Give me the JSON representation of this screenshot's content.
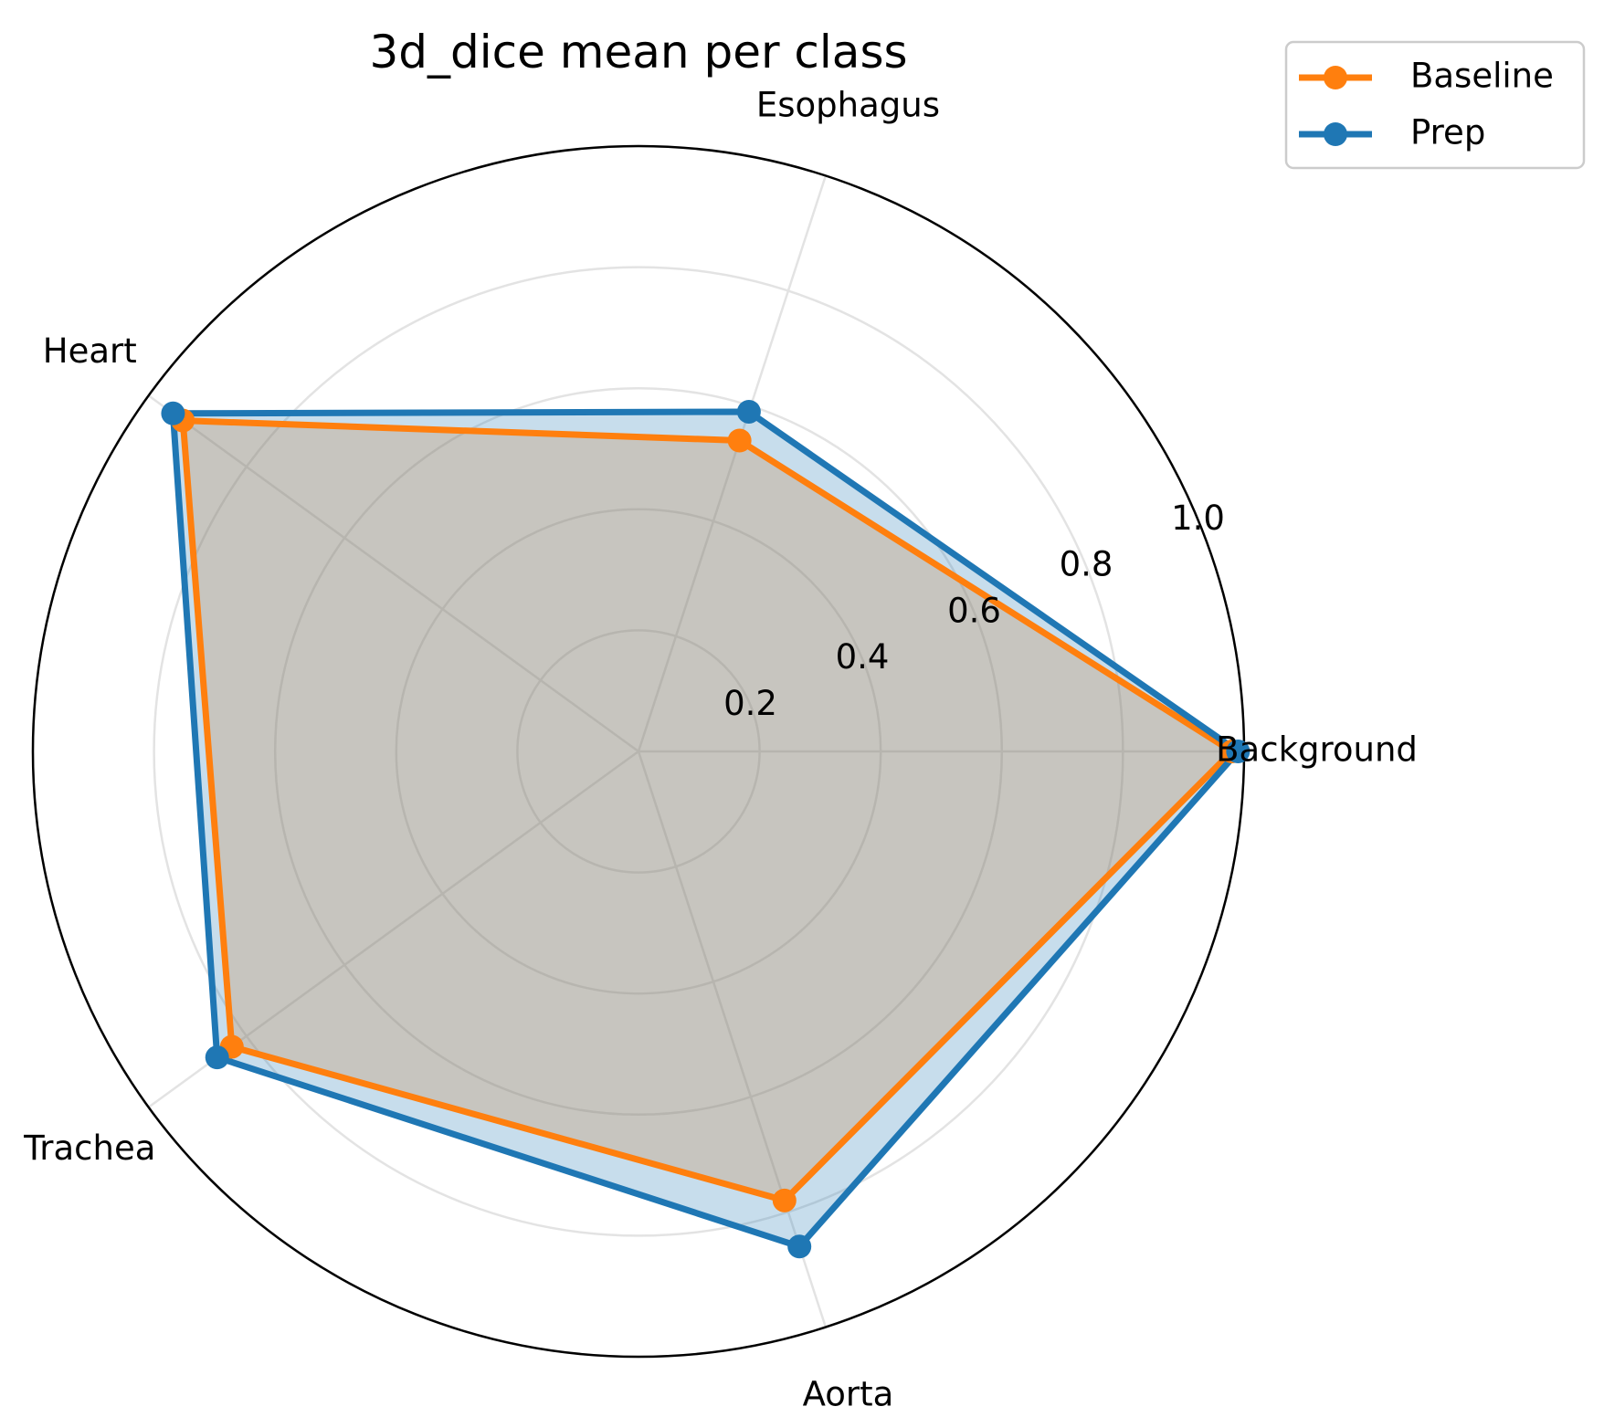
{
  "chart_data": {
    "type": "radar",
    "title": "3d_dice mean per class",
    "categories": [
      "Background",
      "Esophagus",
      "Heart",
      "Trachea",
      "Aorta"
    ],
    "rlim": [
      0,
      1.0
    ],
    "rticks": [
      0.2,
      0.4,
      0.6,
      0.8,
      1.0
    ],
    "rtick_labels": [
      "0.2",
      "0.4",
      "0.6",
      "0.8",
      "1.0"
    ],
    "grid": true,
    "legend_position": "top-right",
    "series": [
      {
        "name": "Baseline",
        "values": [
          0.98,
          0.54,
          0.93,
          0.83,
          0.78
        ],
        "color": "#ff7f0e"
      },
      {
        "name": "Prep",
        "values": [
          0.99,
          0.59,
          0.95,
          0.86,
          0.86
        ],
        "color": "#1f77b4"
      }
    ]
  }
}
